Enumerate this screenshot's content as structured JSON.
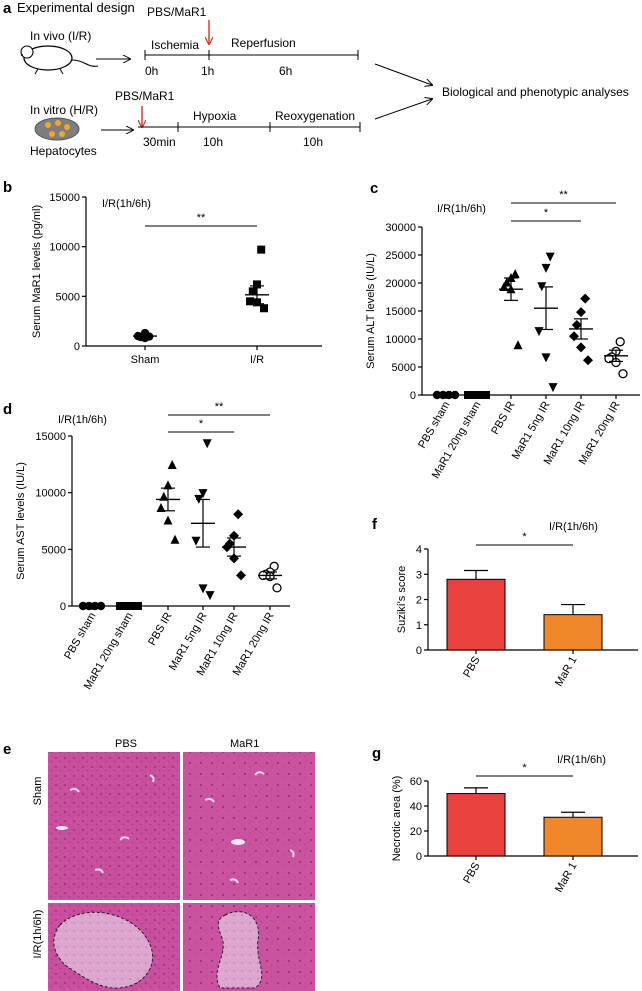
{
  "panel_a": {
    "letter": "a",
    "heading": "Experimental design",
    "invivo": {
      "label": "In vivo (I/R)",
      "treatment": "PBS/MaR1",
      "phase1": "Ischemia",
      "phase2": "Reperfusion",
      "t0": "0h",
      "t1": "1h",
      "t2": "6h"
    },
    "invitro": {
      "treatment": "PBS/MaR1",
      "label": "In vitro (H/R)",
      "cells": "Hepatocytes",
      "phase1": "Hypoxia",
      "phase2": "Reoxygenation",
      "t0": "30min",
      "t1": "10h",
      "t2": "10h"
    },
    "outcome": "Biological and phenotypic analyses"
  },
  "colors": {
    "red_bar": "#e8413e",
    "orange_bar": "#f0862a",
    "arrow_red": "#d9301f",
    "tissue": "#c84e9e"
  },
  "chart_data": [
    {
      "panel": "b",
      "type": "scatter",
      "title": "I/R(1h/6h)",
      "ylabel": "Serum MaR1 levels (pg/ml)",
      "ylim": [
        0,
        15000
      ],
      "yticks": [
        "0",
        "5000",
        "10000",
        "15000"
      ],
      "categories": [
        "Sham",
        "I/R"
      ],
      "markers": [
        "circle",
        "square"
      ],
      "points": [
        [
          950,
          800,
          900,
          1000,
          1300
        ],
        [
          9700,
          6200,
          5500,
          4500,
          4400,
          3800
        ]
      ],
      "means": [
        1000,
        5150
      ],
      "sems": [
        150,
        900
      ],
      "significance": [
        {
          "from": 0,
          "to": 1,
          "label": "**"
        }
      ]
    },
    {
      "panel": "c",
      "type": "scatter",
      "title": "I/R(1h/6h)",
      "ylabel": "Serum ALT levels (IU/L)",
      "ylim": [
        0,
        30000
      ],
      "yticks": [
        "0",
        "5000",
        "10000",
        "15000",
        "20000",
        "25000",
        "30000"
      ],
      "categories": [
        "PBS sham",
        "MaR1 20ng sham",
        "PBS IR",
        "MaR1 5ng IR",
        "MaR1 10ng IR",
        "MaR1 20ng IR"
      ],
      "markers": [
        "circle",
        "square",
        "triangle-up",
        "triangle-down",
        "diamond",
        "circle-open"
      ],
      "points": [
        [
          0,
          0,
          0,
          0
        ],
        [
          0,
          0,
          0,
          0
        ],
        [
          21500,
          20800,
          20000,
          19200,
          18800,
          8800
        ],
        [
          24800,
          22800,
          19500,
          11500,
          6800,
          1500
        ],
        [
          17200,
          14800,
          12500,
          10500,
          8500,
          6200
        ],
        [
          9500,
          7800,
          6800,
          6500,
          5800,
          3800
        ]
      ],
      "means": [
        0,
        0,
        18900,
        15500,
        11800,
        7000
      ],
      "sems": [
        0,
        0,
        2000,
        3800,
        1800,
        1000
      ],
      "significance": [
        {
          "from": 2,
          "to": 4,
          "label": "*"
        },
        {
          "from": 2,
          "to": 5,
          "label": "**"
        }
      ]
    },
    {
      "panel": "d",
      "type": "scatter",
      "title": "I/R(1h/6h)",
      "ylabel": "Serum AST levels (IU/L)",
      "ylim": [
        0,
        15000
      ],
      "yticks": [
        "0",
        "5000",
        "10000",
        "15000"
      ],
      "categories": [
        "PBS sham",
        "MaR1 20ng sham",
        "PBS IR",
        "MaR1 5ng IR",
        "MaR1 10ng IR",
        "MaR1 20ng IR"
      ],
      "markers": [
        "circle",
        "square",
        "triangle-up",
        "triangle-down",
        "diamond",
        "circle-open"
      ],
      "points": [
        [
          0,
          0,
          0,
          0
        ],
        [
          0,
          0,
          0,
          0
        ],
        [
          12400,
          10600,
          9600,
          8600,
          7500,
          5800
        ],
        [
          14400,
          10000,
          9500,
          5800,
          1600,
          1000
        ],
        [
          8100,
          6200,
          5500,
          5200,
          4200,
          2700
        ],
        [
          3500,
          3000,
          2800,
          2700,
          2600,
          1600
        ]
      ],
      "means": [
        0,
        0,
        9400,
        7300,
        5200,
        2700
      ],
      "sems": [
        0,
        0,
        1000,
        2100,
        800,
        300
      ],
      "significance": [
        {
          "from": 2,
          "to": 4,
          "label": "*"
        },
        {
          "from": 2,
          "to": 5,
          "label": "**"
        }
      ]
    },
    {
      "panel": "f",
      "type": "bar",
      "title": "I/R(1h/6h)",
      "ylabel": "Suzikí's score",
      "ylim": [
        0,
        4
      ],
      "yticks": [
        "0",
        "1",
        "2",
        "3",
        "4"
      ],
      "categories": [
        "PBS",
        "MaR 1"
      ],
      "values": [
        2.8,
        1.4
      ],
      "errors": [
        0.35,
        0.4
      ],
      "significance": [
        {
          "from": 0,
          "to": 1,
          "label": "*"
        }
      ]
    },
    {
      "panel": "g",
      "type": "bar",
      "title": "I/R(1h/6h)",
      "ylabel": "Necrotic area (%)",
      "ylim": [
        0,
        60
      ],
      "yticks": [
        "0",
        "20",
        "40",
        "60"
      ],
      "categories": [
        "PBS",
        "MaR 1"
      ],
      "values": [
        50,
        31
      ],
      "errors": [
        4.5,
        4
      ],
      "significance": [
        {
          "from": 0,
          "to": 1,
          "label": "*"
        }
      ]
    }
  ],
  "panel_e": {
    "letter": "e",
    "col_labels": [
      "PBS",
      "MaR1"
    ],
    "row_labels": [
      "Sham",
      "I/R(1h/6h)"
    ]
  },
  "panel_letters": {
    "b": "b",
    "c": "c",
    "d": "d",
    "f": "f",
    "g": "g"
  }
}
